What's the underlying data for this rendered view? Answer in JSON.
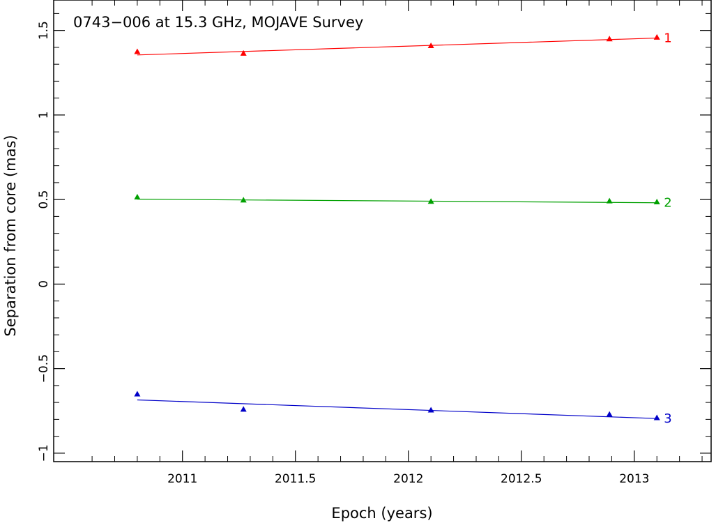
{
  "chart_data": {
    "type": "scatter",
    "title": "0743−006 at 15.3 GHz, MOJAVE Survey",
    "xlabel": "Epoch (years)",
    "ylabel": "Separation from core (mas)",
    "xlim": [
      2010.43,
      2013.34
    ],
    "ylim": [
      -1.05,
      1.68
    ],
    "x_ticks": [
      2011,
      2011.5,
      2012,
      2012.5,
      2013
    ],
    "x_tick_labels": [
      "2011",
      "2011.5",
      "2012",
      "2012.5",
      "2013"
    ],
    "y_ticks": [
      -1,
      -0.5,
      0,
      0.5,
      1,
      1.5
    ],
    "y_tick_labels": [
      "−1",
      "−0.5",
      "0",
      "0.5",
      "1",
      "1.5"
    ],
    "grid": false,
    "marker": "triangle",
    "series": [
      {
        "name": "1",
        "color": "#ff0000",
        "points": [
          {
            "x": 2010.8,
            "y": 1.375
          },
          {
            "x": 2011.27,
            "y": 1.365
          },
          {
            "x": 2012.1,
            "y": 1.41
          },
          {
            "x": 2012.89,
            "y": 1.45
          },
          {
            "x": 2013.1,
            "y": 1.46
          }
        ],
        "fit": [
          {
            "x": 2010.8,
            "y": 1.355
          },
          {
            "x": 2013.1,
            "y": 1.455
          }
        ]
      },
      {
        "name": "2",
        "color": "#00a000",
        "points": [
          {
            "x": 2010.8,
            "y": 0.515
          },
          {
            "x": 2011.27,
            "y": 0.497
          },
          {
            "x": 2012.1,
            "y": 0.489
          },
          {
            "x": 2012.89,
            "y": 0.492
          },
          {
            "x": 2013.1,
            "y": 0.486
          }
        ],
        "fit": [
          {
            "x": 2010.8,
            "y": 0.502
          },
          {
            "x": 2013.1,
            "y": 0.481
          }
        ]
      },
      {
        "name": "3",
        "color": "#0000c8",
        "points": [
          {
            "x": 2010.8,
            "y": -0.65
          },
          {
            "x": 2011.27,
            "y": -0.74
          },
          {
            "x": 2012.1,
            "y": -0.745
          },
          {
            "x": 2012.89,
            "y": -0.77
          },
          {
            "x": 2013.1,
            "y": -0.79
          }
        ],
        "fit": [
          {
            "x": 2010.8,
            "y": -0.685
          },
          {
            "x": 2013.1,
            "y": -0.795
          }
        ]
      }
    ]
  }
}
